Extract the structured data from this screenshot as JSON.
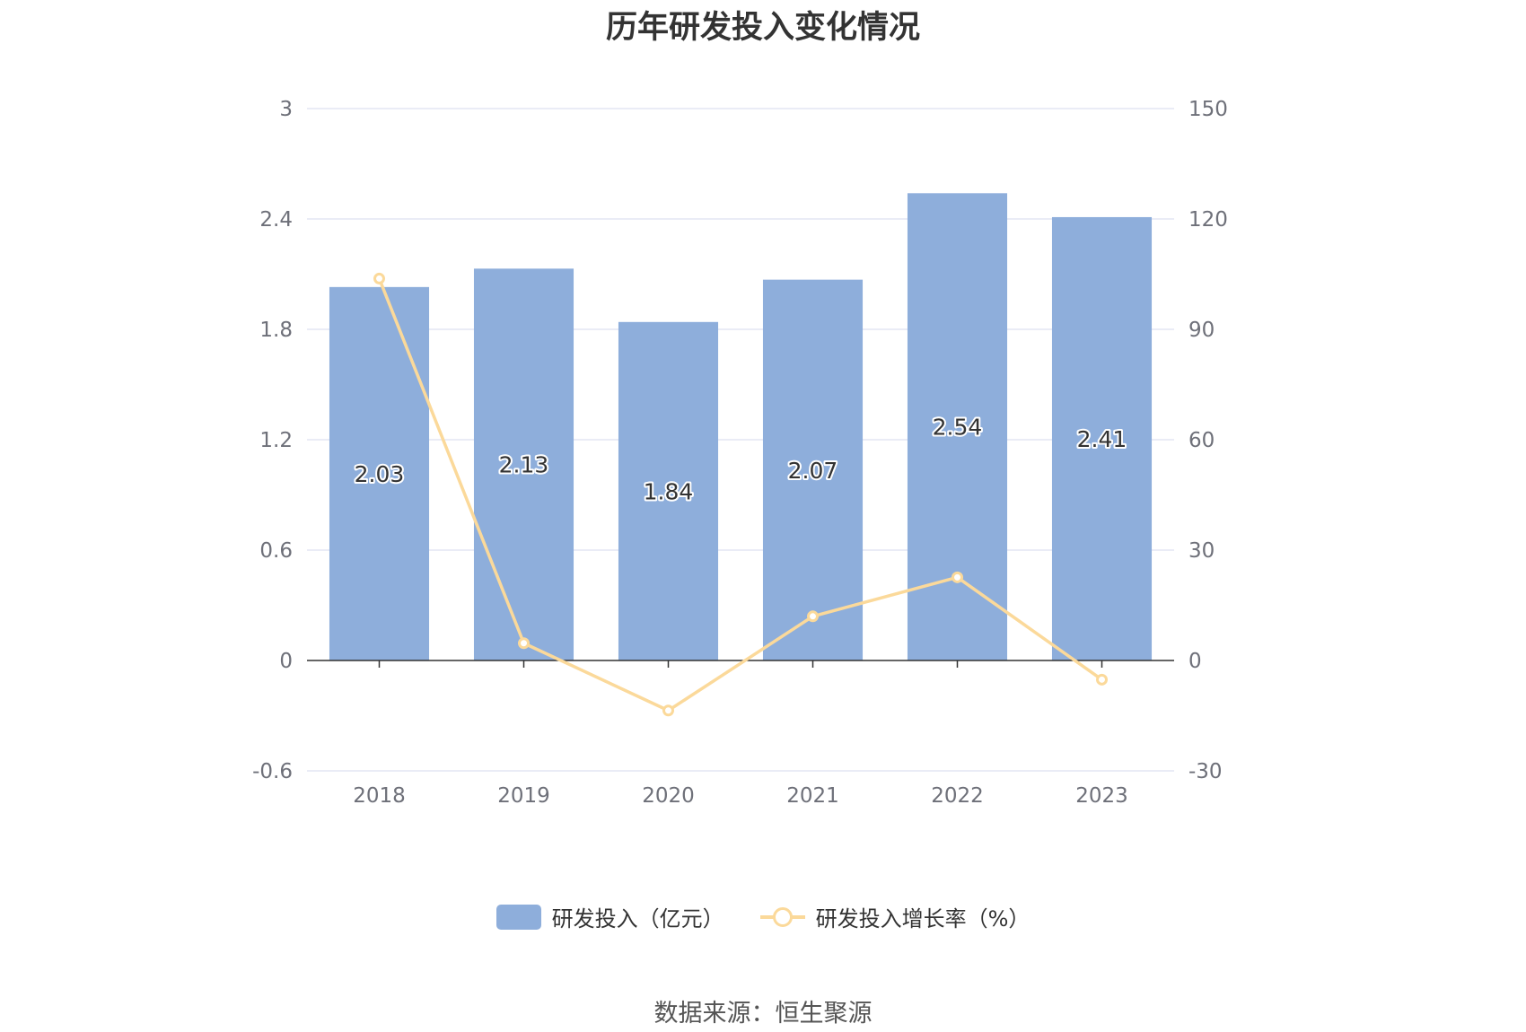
{
  "title": "历年研发投入变化情况",
  "source": "数据来源：恒生聚源",
  "colors": {
    "bar": "#8eaedb",
    "line": "#fbd99a",
    "grid": "#e3e6f3",
    "axis": "#333333",
    "tick": "#6e7079"
  },
  "chart_data": {
    "type": "bar",
    "categories": [
      "2018",
      "2019",
      "2020",
      "2021",
      "2022",
      "2023"
    ],
    "series": [
      {
        "name": "研发投入（亿元）",
        "type": "bar",
        "axis": "left",
        "values": [
          2.03,
          2.13,
          1.84,
          2.07,
          2.54,
          2.41
        ],
        "labels": [
          "2.03",
          "2.13",
          "1.84",
          "2.07",
          "2.54",
          "2.41"
        ]
      },
      {
        "name": "研发投入增长率（%）",
        "type": "line",
        "axis": "right",
        "values": [
          103.8,
          4.7,
          -13.6,
          12.0,
          22.6,
          -5.2
        ]
      }
    ],
    "y_left": {
      "ticks": [
        "3",
        "2.4",
        "1.8",
        "1.2",
        "0.6",
        "0",
        "-0.6"
      ],
      "min": -0.6,
      "max": 3
    },
    "y_right": {
      "ticks": [
        "150",
        "120",
        "90",
        "60",
        "30",
        "0",
        "-30"
      ],
      "min": -30,
      "max": 150
    },
    "grid": true,
    "legend_position": "bottom"
  }
}
